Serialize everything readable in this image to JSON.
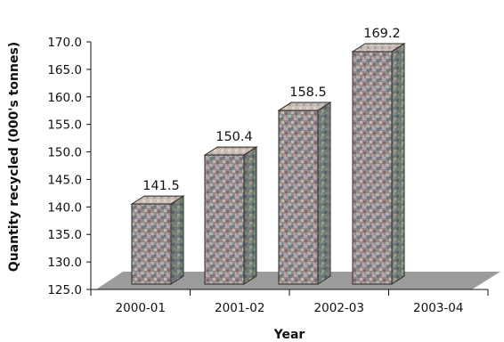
{
  "chart_data": {
    "type": "bar",
    "title": "",
    "xlabel": "Year",
    "ylabel": "Quantity recycled (000's tonnes)",
    "categories": [
      "2000-01",
      "2001-02",
      "2002-03",
      "2003-04"
    ],
    "values": [
      141.5,
      150.4,
      158.5,
      169.2
    ],
    "value_labels": [
      "141.5",
      "150.4",
      "158.5",
      "169.2"
    ],
    "ylim": [
      125.0,
      170.0
    ],
    "yticks": [
      "125.0",
      "130.0",
      "135.0",
      "140.0",
      "145.0",
      "150.0",
      "155.0",
      "160.0",
      "165.0",
      "170.0"
    ],
    "grid": false,
    "style": "3d-bar",
    "colors": {
      "floor": "#9c9c9c",
      "bar_front": "#9a8c8f",
      "bar_top": "#c9b9b2",
      "bar_side": "#6f7a73",
      "outline": "#2a2a2a"
    }
  }
}
